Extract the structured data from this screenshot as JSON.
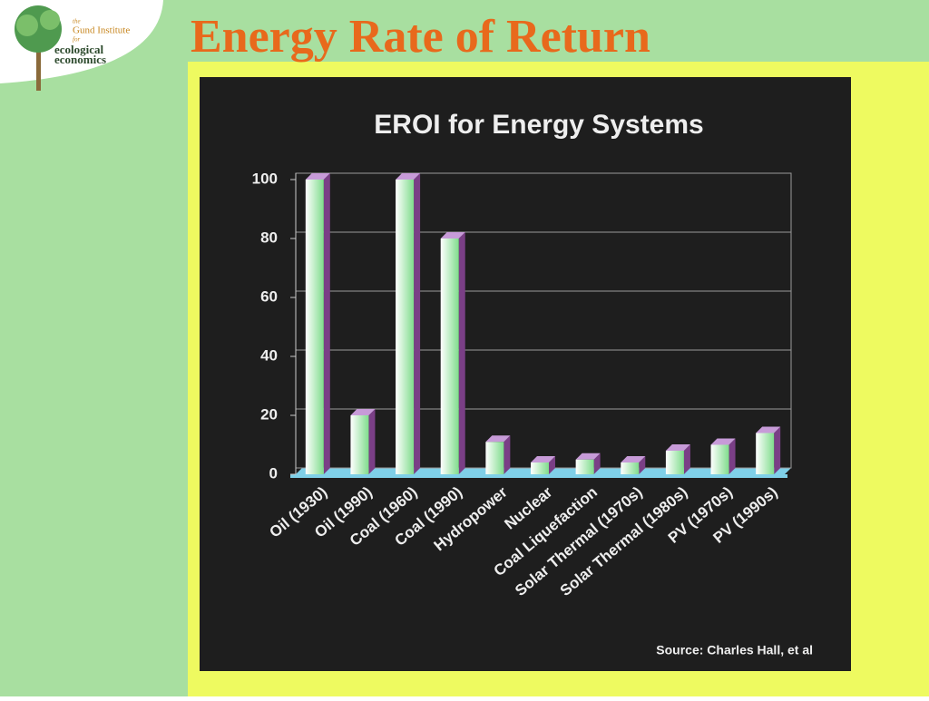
{
  "slide": {
    "title": "Energy Rate of Return",
    "logo": [
      "the",
      "Gund Institute",
      "for",
      "ecological",
      "economics"
    ]
  },
  "chart_data": {
    "type": "bar",
    "title": "EROI for Energy Systems",
    "categories": [
      "Oil (1930)",
      "Oil (1990)",
      "Coal (1960)",
      "Coal (1990)",
      "Hydropower",
      "Nuclear",
      "Coal Liquefaction",
      "Solar Thermal (1970s)",
      "Solar Thermal (1980s)",
      "PV (1970s)",
      "PV (1990s)"
    ],
    "values": [
      100,
      20,
      100,
      80,
      11,
      4,
      5,
      4,
      8,
      10,
      14
    ],
    "color": "#7fdc8c",
    "ylim": [
      0,
      100
    ],
    "yticks": [
      0,
      20,
      40,
      60,
      80,
      100
    ],
    "grid": true,
    "source": "Source: Charles Hall, et al"
  }
}
